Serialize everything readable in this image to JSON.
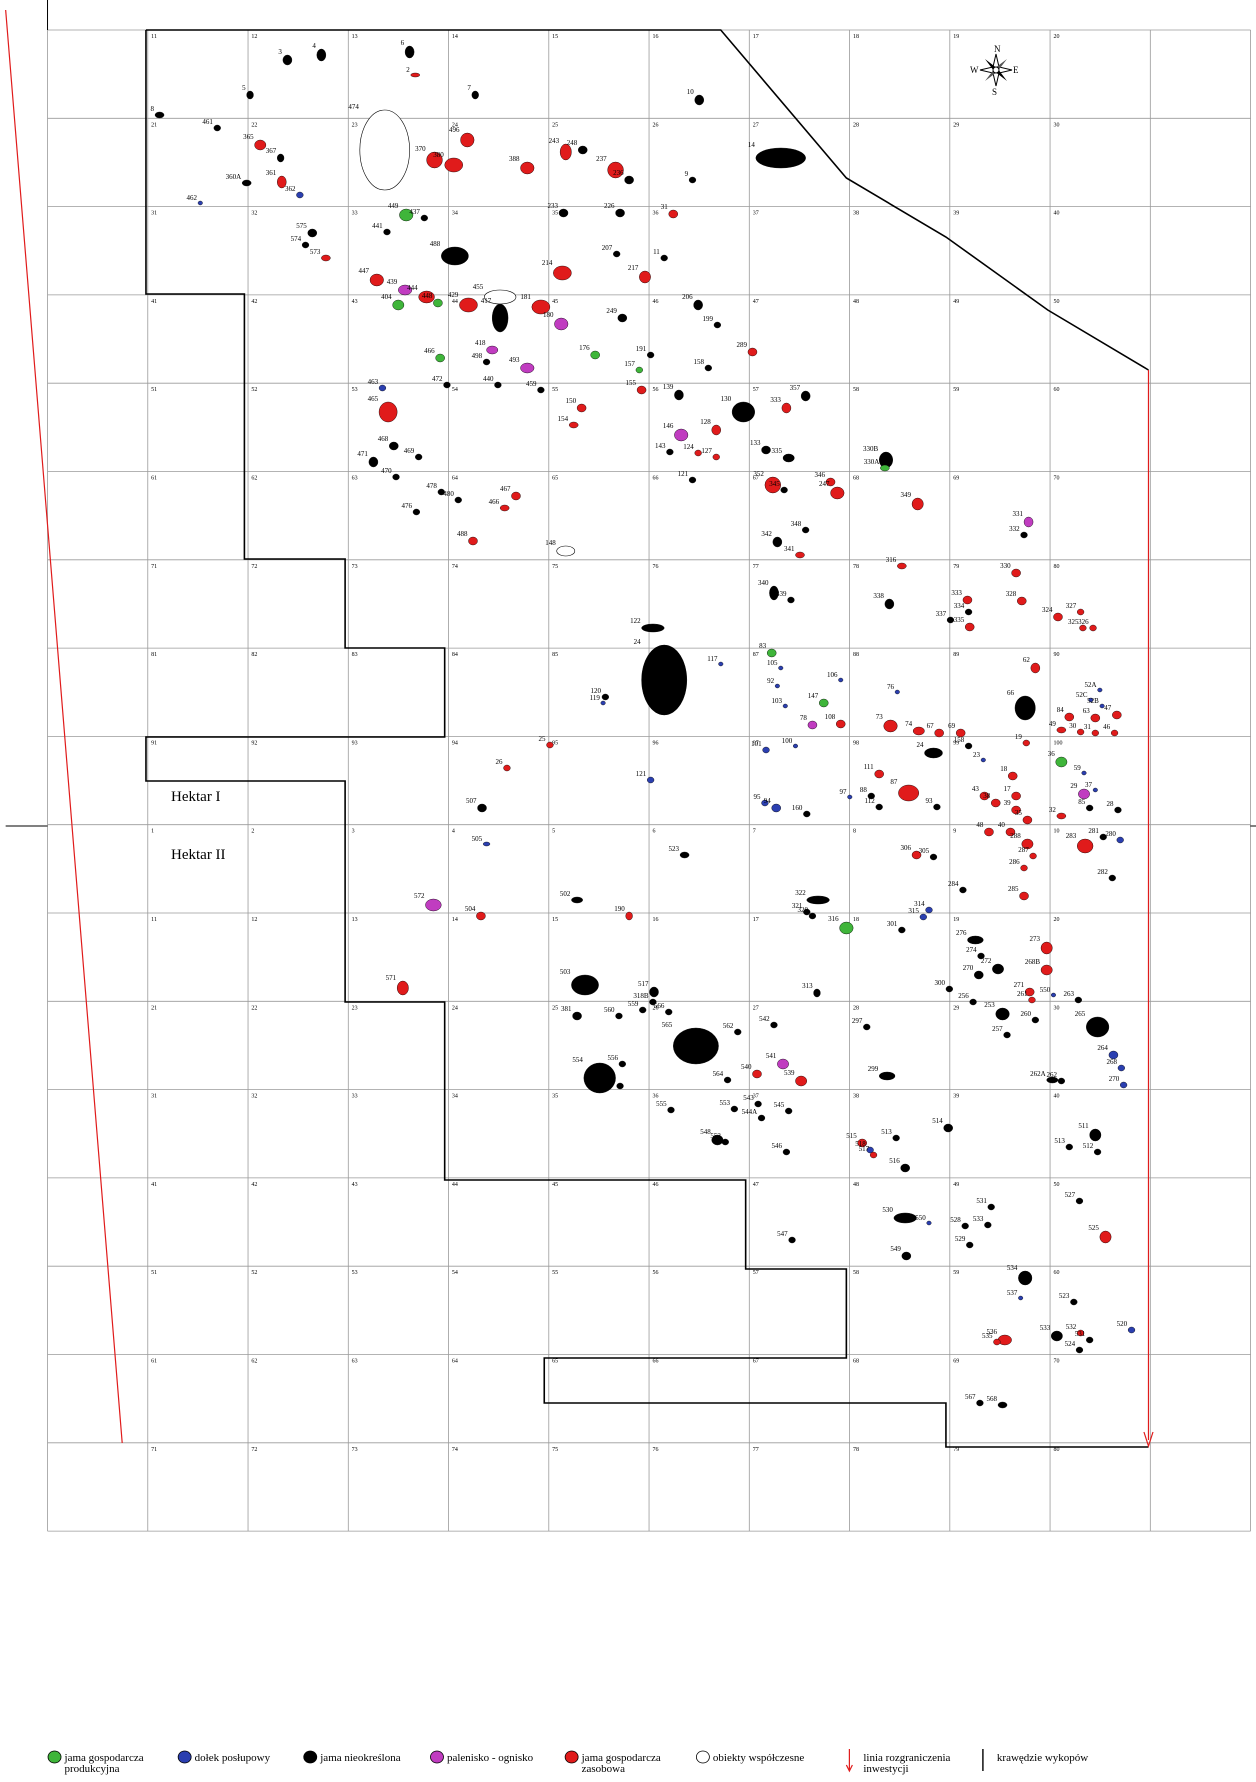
{
  "labels": {
    "hektar_1": "Hektar I",
    "hektar_2": "Hektar II"
  },
  "compass": {
    "n": "N",
    "e": "E",
    "s": "S",
    "w": "W"
  },
  "grid": {
    "hektar_1_cells": [
      [
        11,
        12,
        13,
        14,
        15,
        16,
        17,
        18,
        19,
        20
      ],
      [
        21,
        22,
        23,
        24,
        25,
        26,
        27,
        28,
        29,
        30
      ],
      [
        31,
        32,
        33,
        34,
        35,
        36,
        37,
        38,
        39,
        40
      ],
      [
        41,
        42,
        43,
        44,
        45,
        46,
        47,
        48,
        49,
        50
      ],
      [
        51,
        52,
        53,
        54,
        55,
        56,
        57,
        58,
        59,
        60
      ],
      [
        61,
        62,
        63,
        64,
        65,
        66,
        67,
        68,
        69,
        70
      ],
      [
        71,
        72,
        73,
        74,
        75,
        76,
        77,
        78,
        79,
        80
      ],
      [
        81,
        82,
        83,
        84,
        85,
        86,
        87,
        88,
        89,
        90
      ],
      [
        91,
        92,
        93,
        94,
        95,
        96,
        97,
        98,
        99,
        100
      ]
    ],
    "hektar_2_cells": [
      [
        1,
        2,
        3,
        4,
        5,
        6,
        7,
        8,
        9,
        10
      ],
      [
        11,
        12,
        13,
        14,
        15,
        16,
        17,
        18,
        19,
        20
      ],
      [
        21,
        22,
        23,
        24,
        25,
        26,
        27,
        28,
        29,
        30
      ],
      [
        31,
        32,
        33,
        34,
        35,
        36,
        37,
        38,
        39,
        40
      ],
      [
        41,
        42,
        43,
        44,
        45,
        46,
        47,
        48,
        49,
        50
      ],
      [
        51,
        52,
        53,
        54,
        55,
        56,
        57,
        58,
        59,
        60
      ],
      [
        61,
        62,
        63,
        64,
        65,
        66,
        67,
        68,
        69,
        70
      ],
      [
        71,
        72,
        73,
        74,
        75,
        76,
        77,
        78,
        79,
        80
      ]
    ]
  },
  "feature_types": {
    "G": {
      "color": "#3fb53a"
    },
    "B": {
      "color": "#2b3fb0"
    },
    "N": {
      "color": "#000000"
    },
    "M": {
      "color": "#c03cc0"
    },
    "R": {
      "color": "#e01b1b"
    },
    "W": {
      "color": "#ffffff"
    }
  },
  "features": [
    {
      "label": "122",
      "type": "N"
    },
    {
      "label": "24",
      "type": "N"
    },
    {
      "label": "14",
      "type": "N"
    },
    {
      "label": "3",
      "type": "N"
    },
    {
      "label": "4",
      "type": "N"
    },
    {
      "label": "6",
      "type": "N"
    },
    {
      "label": "2",
      "type": "R"
    },
    {
      "label": "5",
      "type": "N"
    },
    {
      "label": "7",
      "type": "N"
    },
    {
      "label": "10",
      "type": "N"
    },
    {
      "label": "8",
      "type": "N"
    },
    {
      "label": "461",
      "type": "N"
    },
    {
      "label": "365",
      "type": "R"
    },
    {
      "label": "367",
      "type": "N"
    },
    {
      "label": "361",
      "type": "R"
    },
    {
      "label": "360A",
      "type": "N"
    },
    {
      "label": "362",
      "type": "B"
    },
    {
      "label": "462",
      "type": "B"
    },
    {
      "label": "575",
      "type": "N"
    },
    {
      "label": "574",
      "type": "N"
    },
    {
      "label": "573",
      "type": "R"
    },
    {
      "label": "474",
      "type": "W"
    },
    {
      "label": "496",
      "type": "R"
    },
    {
      "label": "370",
      "type": "R"
    },
    {
      "label": "380",
      "type": "R"
    },
    {
      "label": "388",
      "type": "R"
    },
    {
      "label": "243",
      "type": "R"
    },
    {
      "label": "248",
      "type": "N"
    },
    {
      "label": "237",
      "type": "R"
    },
    {
      "label": "236",
      "type": "N"
    },
    {
      "label": "9",
      "type": "N"
    },
    {
      "label": "449",
      "type": "G"
    },
    {
      "label": "437",
      "type": "N"
    },
    {
      "label": "488",
      "type": "N"
    },
    {
      "label": "441",
      "type": "N"
    },
    {
      "label": "233",
      "type": "N"
    },
    {
      "label": "226",
      "type": "N"
    },
    {
      "label": "31",
      "type": "R"
    },
    {
      "label": "11",
      "type": "N"
    },
    {
      "label": "217",
      "type": "R"
    },
    {
      "label": "214",
      "type": "R"
    },
    {
      "label": "207",
      "type": "N"
    },
    {
      "label": "447",
      "type": "R"
    },
    {
      "label": "439",
      "type": "M"
    },
    {
      "label": "404",
      "type": "G"
    },
    {
      "label": "444",
      "type": "R"
    },
    {
      "label": "448",
      "type": "G"
    },
    {
      "label": "429",
      "type": "R"
    },
    {
      "label": "455",
      "type": "W"
    },
    {
      "label": "417",
      "type": "N"
    },
    {
      "label": "181",
      "type": "R"
    },
    {
      "label": "180",
      "type": "M"
    },
    {
      "label": "206",
      "type": "N"
    },
    {
      "label": "249",
      "type": "N"
    },
    {
      "label": "199",
      "type": "N"
    },
    {
      "label": "289",
      "type": "R"
    },
    {
      "label": "158",
      "type": "N"
    },
    {
      "label": "176",
      "type": "G"
    },
    {
      "label": "191",
      "type": "N"
    },
    {
      "label": "157",
      "type": "G"
    },
    {
      "label": "493",
      "type": "M"
    },
    {
      "label": "418",
      "type": "M"
    },
    {
      "label": "498",
      "type": "N"
    },
    {
      "label": "466",
      "type": "G"
    },
    {
      "label": "465",
      "type": "R"
    },
    {
      "label": "472",
      "type": "N"
    },
    {
      "label": "463",
      "type": "B"
    },
    {
      "label": "440",
      "type": "N"
    },
    {
      "label": "459",
      "type": "N"
    },
    {
      "label": "150",
      "type": "R"
    },
    {
      "label": "154",
      "type": "R"
    },
    {
      "label": "155",
      "type": "R"
    },
    {
      "label": "139",
      "type": "N"
    },
    {
      "label": "146",
      "type": "M"
    },
    {
      "label": "128",
      "type": "R"
    },
    {
      "label": "130",
      "type": "N"
    },
    {
      "label": "333",
      "type": "R"
    },
    {
      "label": "357",
      "type": "N"
    },
    {
      "label": "133",
      "type": "N"
    },
    {
      "label": "335",
      "type": "N"
    },
    {
      "label": "143",
      "type": "N"
    },
    {
      "label": "124",
      "type": "R"
    },
    {
      "label": "127",
      "type": "R"
    },
    {
      "label": "330B",
      "type": "N"
    },
    {
      "label": "330A",
      "type": "G"
    },
    {
      "label": "468",
      "type": "N"
    },
    {
      "label": "469",
      "type": "N"
    },
    {
      "label": "471",
      "type": "N"
    },
    {
      "label": "470",
      "type": "N"
    },
    {
      "label": "478",
      "type": "N"
    },
    {
      "label": "480",
      "type": "N"
    },
    {
      "label": "476",
      "type": "N"
    },
    {
      "label": "467",
      "type": "R"
    },
    {
      "label": "466",
      "type": "R"
    },
    {
      "label": "488",
      "type": "R"
    },
    {
      "label": "148",
      "type": "W"
    },
    {
      "label": "121",
      "type": "N"
    },
    {
      "label": "352",
      "type": "R"
    },
    {
      "label": "345",
      "type": "N"
    },
    {
      "label": "346",
      "type": "R"
    },
    {
      "label": "247",
      "type": "R"
    },
    {
      "label": "349",
      "type": "R"
    },
    {
      "label": "348",
      "type": "N"
    },
    {
      "label": "342",
      "type": "N"
    },
    {
      "label": "341",
      "type": "R"
    },
    {
      "label": "331",
      "type": "M"
    },
    {
      "label": "332",
      "type": "N"
    },
    {
      "label": "316",
      "type": "R"
    },
    {
      "label": "330",
      "type": "R"
    },
    {
      "label": "340",
      "type": "N"
    },
    {
      "label": "339",
      "type": "N"
    },
    {
      "label": "338",
      "type": "N"
    },
    {
      "label": "333",
      "type": "R"
    },
    {
      "label": "334",
      "type": "N"
    },
    {
      "label": "335",
      "type": "R"
    },
    {
      "label": "337",
      "type": "N"
    },
    {
      "label": "328",
      "type": "R"
    },
    {
      "label": "324",
      "type": "R"
    },
    {
      "label": "327",
      "type": "R"
    },
    {
      "label": "325",
      "type": "R"
    },
    {
      "label": "326",
      "type": "R"
    },
    {
      "label": "83",
      "type": "G"
    },
    {
      "label": "117",
      "type": "B"
    },
    {
      "label": "105",
      "type": "B"
    },
    {
      "label": "120",
      "type": "N"
    },
    {
      "label": "119",
      "type": "B"
    },
    {
      "label": "92",
      "type": "B"
    },
    {
      "label": "106",
      "type": "B"
    },
    {
      "label": "76",
      "type": "B"
    },
    {
      "label": "62",
      "type": "R"
    },
    {
      "label": "147",
      "type": "G"
    },
    {
      "label": "103",
      "type": "B"
    },
    {
      "label": "66",
      "type": "N"
    },
    {
      "label": "78",
      "type": "M"
    },
    {
      "label": "108",
      "type": "R"
    },
    {
      "label": "73",
      "type": "R"
    },
    {
      "label": "74",
      "type": "R"
    },
    {
      "label": "67",
      "type": "R"
    },
    {
      "label": "69",
      "type": "R"
    },
    {
      "label": "52A",
      "type": "B"
    },
    {
      "label": "52C",
      "type": "B"
    },
    {
      "label": "52B",
      "type": "B"
    },
    {
      "label": "63",
      "type": "R"
    },
    {
      "label": "84",
      "type": "R"
    },
    {
      "label": "47",
      "type": "R"
    },
    {
      "label": "49",
      "type": "R"
    },
    {
      "label": "30",
      "type": "R"
    },
    {
      "label": "31",
      "type": "R"
    },
    {
      "label": "46",
      "type": "R"
    },
    {
      "label": "24",
      "type": "N"
    },
    {
      "label": "158",
      "type": "N"
    },
    {
      "label": "19",
      "type": "R"
    },
    {
      "label": "36",
      "type": "G"
    },
    {
      "label": "101",
      "type": "B"
    },
    {
      "label": "100",
      "type": "B"
    },
    {
      "label": "26",
      "type": "R"
    },
    {
      "label": "25",
      "type": "R"
    },
    {
      "label": "121",
      "type": "B"
    },
    {
      "label": "111",
      "type": "R"
    },
    {
      "label": "87",
      "type": "R"
    },
    {
      "label": "23",
      "type": "B"
    },
    {
      "label": "18",
      "type": "R"
    },
    {
      "label": "59",
      "type": "B"
    },
    {
      "label": "37",
      "type": "B"
    },
    {
      "label": "29",
      "type": "M"
    },
    {
      "label": "507",
      "type": "N"
    },
    {
      "label": "95",
      "type": "B"
    },
    {
      "label": "94",
      "type": "B"
    },
    {
      "label": "160",
      "type": "N"
    },
    {
      "label": "97",
      "type": "B"
    },
    {
      "label": "88",
      "type": "N"
    },
    {
      "label": "112",
      "type": "N"
    },
    {
      "label": "93",
      "type": "N"
    },
    {
      "label": "43",
      "type": "R"
    },
    {
      "label": "38",
      "type": "R"
    },
    {
      "label": "17",
      "type": "R"
    },
    {
      "label": "39",
      "type": "R"
    },
    {
      "label": "35",
      "type": "R"
    },
    {
      "label": "32",
      "type": "R"
    },
    {
      "label": "85",
      "type": "N"
    },
    {
      "label": "28",
      "type": "N"
    },
    {
      "label": "505",
      "type": "B"
    },
    {
      "label": "523",
      "type": "N"
    },
    {
      "label": "306",
      "type": "R"
    },
    {
      "label": "305",
      "type": "N"
    },
    {
      "label": "48",
      "type": "R"
    },
    {
      "label": "40",
      "type": "R"
    },
    {
      "label": "288",
      "type": "R"
    },
    {
      "label": "287",
      "type": "R"
    },
    {
      "label": "283",
      "type": "R"
    },
    {
      "label": "281",
      "type": "N"
    },
    {
      "label": "280",
      "type": "B"
    },
    {
      "label": "286",
      "type": "R"
    },
    {
      "label": "282",
      "type": "N"
    },
    {
      "label": "572",
      "type": "M"
    },
    {
      "label": "504",
      "type": "R"
    },
    {
      "label": "502",
      "type": "N"
    },
    {
      "label": "190",
      "type": "R"
    },
    {
      "label": "322",
      "type": "N"
    },
    {
      "label": "321",
      "type": "N"
    },
    {
      "label": "320",
      "type": "N"
    },
    {
      "label": "316",
      "type": "G"
    },
    {
      "label": "301",
      "type": "N"
    },
    {
      "label": "314",
      "type": "B"
    },
    {
      "label": "315",
      "type": "B"
    },
    {
      "label": "285",
      "type": "R"
    },
    {
      "label": "284",
      "type": "N"
    },
    {
      "label": "276",
      "type": "N"
    },
    {
      "label": "274",
      "type": "N"
    },
    {
      "label": "273",
      "type": "R"
    },
    {
      "label": "268B",
      "type": "R"
    },
    {
      "label": "272",
      "type": "N"
    },
    {
      "label": "270",
      "type": "N"
    },
    {
      "label": "271",
      "type": "R"
    },
    {
      "label": "571",
      "type": "R"
    },
    {
      "label": "503",
      "type": "N"
    },
    {
      "label": "517",
      "type": "N"
    },
    {
      "label": "318B",
      "type": "N"
    },
    {
      "label": "313",
      "type": "N"
    },
    {
      "label": "300",
      "type": "N"
    },
    {
      "label": "256",
      "type": "N"
    },
    {
      "label": "261",
      "type": "R"
    },
    {
      "label": "550",
      "type": "B"
    },
    {
      "label": "263",
      "type": "N"
    },
    {
      "label": "253",
      "type": "N"
    },
    {
      "label": "257",
      "type": "N"
    },
    {
      "label": "260",
      "type": "N"
    },
    {
      "label": "265",
      "type": "N"
    },
    {
      "label": "264",
      "type": "B"
    },
    {
      "label": "268",
      "type": "B"
    },
    {
      "label": "270",
      "type": "B"
    },
    {
      "label": "262A",
      "type": "N"
    },
    {
      "label": "262",
      "type": "N"
    },
    {
      "label": "297",
      "type": "N"
    },
    {
      "label": "299",
      "type": "N"
    },
    {
      "label": "381",
      "type": "N"
    },
    {
      "label": "560",
      "type": "N"
    },
    {
      "label": "559",
      "type": "N"
    },
    {
      "label": "566",
      "type": "N"
    },
    {
      "label": "565",
      "type": "N"
    },
    {
      "label": "562",
      "type": "N"
    },
    {
      "label": "542",
      "type": "N"
    },
    {
      "label": "541",
      "type": "M"
    },
    {
      "label": "540",
      "type": "R"
    },
    {
      "label": "539",
      "type": "R"
    },
    {
      "label": "564",
      "type": "N"
    },
    {
      "label": "554",
      "type": "N"
    },
    {
      "label": "556",
      "type": "N"
    },
    {
      "label": "558",
      "type": "N"
    },
    {
      "label": "543",
      "type": "N"
    },
    {
      "label": "553",
      "type": "N"
    },
    {
      "label": "545",
      "type": "N"
    },
    {
      "label": "544A",
      "type": "N"
    },
    {
      "label": "555",
      "type": "N"
    },
    {
      "label": "548",
      "type": "N"
    },
    {
      "label": "552",
      "type": "N"
    },
    {
      "label": "546",
      "type": "N"
    },
    {
      "label": "514",
      "type": "N"
    },
    {
      "label": "513",
      "type": "N"
    },
    {
      "label": "515",
      "type": "R"
    },
    {
      "label": "518",
      "type": "B"
    },
    {
      "label": "517",
      "type": "R"
    },
    {
      "label": "516",
      "type": "N"
    },
    {
      "label": "511",
      "type": "N"
    },
    {
      "label": "512",
      "type": "N"
    },
    {
      "label": "513",
      "type": "N"
    },
    {
      "label": "527",
      "type": "N"
    },
    {
      "label": "530",
      "type": "N"
    },
    {
      "label": "550",
      "type": "B"
    },
    {
      "label": "531",
      "type": "N"
    },
    {
      "label": "533",
      "type": "N"
    },
    {
      "label": "528",
      "type": "N"
    },
    {
      "label": "529",
      "type": "N"
    },
    {
      "label": "525",
      "type": "R"
    },
    {
      "label": "547",
      "type": "N"
    },
    {
      "label": "549",
      "type": "N"
    },
    {
      "label": "534",
      "type": "N"
    },
    {
      "label": "537",
      "type": "B"
    },
    {
      "label": "523",
      "type": "N"
    },
    {
      "label": "536",
      "type": "R"
    },
    {
      "label": "535",
      "type": "R"
    },
    {
      "label": "532",
      "type": "R"
    },
    {
      "label": "533",
      "type": "N"
    },
    {
      "label": "531",
      "type": "N"
    },
    {
      "label": "524",
      "type": "N"
    },
    {
      "label": "520",
      "type": "B"
    },
    {
      "label": "567",
      "type": "N"
    },
    {
      "label": "568",
      "type": "N"
    }
  ],
  "legend": [
    {
      "type": "G",
      "lines": [
        "jama gospodarcza",
        "produkcyjna"
      ]
    },
    {
      "type": "B",
      "lines": [
        "dołek posłupowy"
      ]
    },
    {
      "type": "N",
      "lines": [
        "jama nieokreślona"
      ]
    },
    {
      "type": "M",
      "lines": [
        "palenisko - ognisko"
      ]
    },
    {
      "type": "R",
      "lines": [
        "jama gospodarcza",
        "zasobowa"
      ]
    },
    {
      "type": "W",
      "lines": [
        "obiekty współczesne"
      ]
    },
    {
      "symbol": "red-arrow",
      "lines": [
        "linia rozgraniczenia",
        "inwestycji"
      ]
    },
    {
      "symbol": "black-line",
      "lines": [
        "krawędzie  wykopów"
      ]
    }
  ]
}
